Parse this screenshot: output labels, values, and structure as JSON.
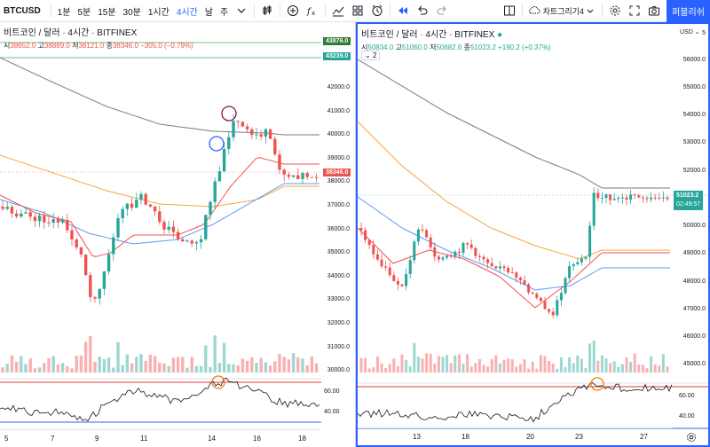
{
  "toolbar": {
    "symbol": "BTCUSD",
    "intervals": [
      "1분",
      "5분",
      "15분",
      "30분",
      "1시간",
      "4시간",
      "날",
      "주"
    ],
    "active_interval": "4시간",
    "templates_label": "차트그리기4",
    "publish_label": "퍼블리쉬",
    "icons": [
      "candles-icon",
      "add-indicator-icon",
      "fx-icon",
      "compare-icon",
      "alert-icon",
      "replay-icon",
      "undo-icon",
      "redo-icon",
      "layout-icon",
      "cloud-icon",
      "settings-icon",
      "fullscreen-icon",
      "camera-icon"
    ]
  },
  "colors": {
    "accent": "#2962ff",
    "up": "#26a69a",
    "down": "#ef5350",
    "rsi_band": "#e53935"
  },
  "left": {
    "title": "비트코인 / 달러 · 4시간 · BITFINEX",
    "ohlc": {
      "open_label": "시",
      "open": "38652.0",
      "high_label": "고",
      "high": "38889.0",
      "low_label": "저",
      "low": "38121.0",
      "close_label": "종",
      "close": "38346.0",
      "change": "−305.0 (−0.79%)"
    },
    "price_ticks": [
      "42000.0",
      "41000.0",
      "40000.0",
      "39000.0",
      "38000.0",
      "37000.0",
      "36000.0",
      "35000.0",
      "34000.0",
      "33000.0",
      "32000.0",
      "31000.0",
      "30000.0"
    ],
    "hline_labels": [
      "43876.0",
      "43239.0"
    ],
    "last_price": "38346.0",
    "rsi_ticks": [
      "60.00",
      "40.00"
    ],
    "time_ticks": [
      "5",
      "7",
      "9",
      "11",
      "14",
      "16",
      "18"
    ]
  },
  "right": {
    "title": "비트코인 / 달러 · 4시간 · BITFINEX",
    "ohlc": {
      "open_label": "시",
      "open": "50834.0",
      "high_label": "고",
      "high": "51060.0",
      "low_label": "저",
      "low": "50682.6",
      "close_label": "종",
      "close": "51023.2",
      "change": "+190.2 (+0.37%)"
    },
    "collapsed_indicators": "2",
    "currency": "USD",
    "price_ticks": [
      "5",
      "56000.0",
      "55000.0",
      "54000.0",
      "53000.0",
      "52000.0",
      "50000.0",
      "49000.0",
      "48000.0",
      "47000.0",
      "46000.0",
      "45000.0"
    ],
    "last_price": "51023.2",
    "countdown": "02:49:57",
    "rsi_ticks": [
      "60.00",
      "40.00"
    ],
    "time_ticks": [
      "13",
      "18",
      "20",
      "23",
      "27"
    ]
  }
}
